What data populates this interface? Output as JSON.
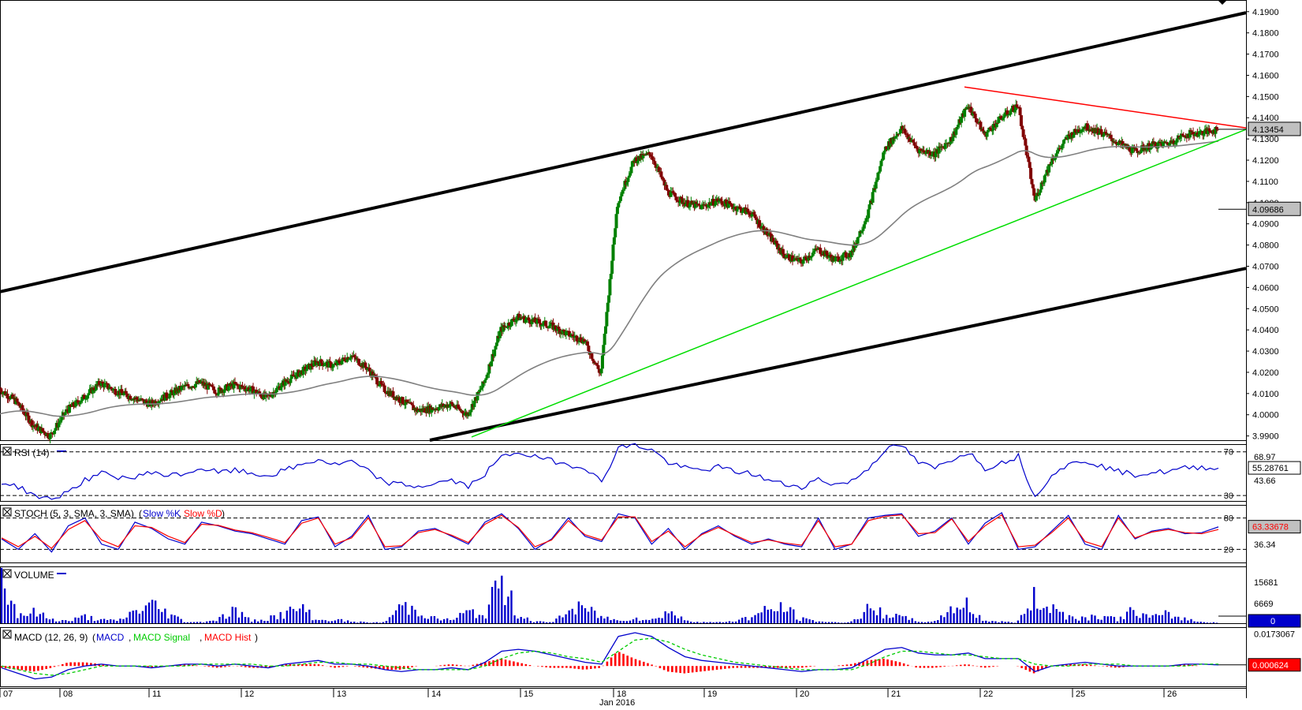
{
  "chart_data": [
    {
      "type": "candlestick",
      "panel": "price",
      "yticks": [
        "4.1900",
        "4.1800",
        "4.1700",
        "4.1600",
        "4.1500",
        "4.1400",
        "4.1300",
        "4.1200",
        "4.1100",
        "4.1000",
        "4.0900",
        "4.0800",
        "4.0700",
        "4.0600",
        "4.0500",
        "4.0400",
        "4.0300",
        "4.0200",
        "4.0100",
        "4.0000",
        "3.9900"
      ],
      "ylim": [
        3.988,
        4.1955
      ],
      "last_price": "4.13454",
      "last_price_value": 4.13454,
      "sma_label": "4.09686",
      "sma_value": 4.09686,
      "grid": false,
      "series": [
        {
          "name": "price",
          "description": "approximate close path",
          "x": [
            0,
            20,
            40,
            60,
            80,
            100,
            120,
            140,
            160,
            180,
            200,
            220,
            240,
            260,
            280,
            300,
            320,
            340,
            360,
            380,
            400,
            420,
            440,
            460,
            480,
            500,
            520,
            540,
            560,
            580,
            600,
            620,
            640,
            660,
            680,
            700,
            720,
            740,
            760,
            780,
            800,
            820,
            840,
            860,
            880,
            900,
            920,
            940,
            960,
            980,
            1000,
            1020,
            1040,
            1060,
            1080,
            1100,
            1120,
            1140,
            1160,
            1180,
            1200,
            1220,
            1240,
            1260,
            1280,
            1300,
            1320,
            1340,
            1360,
            1380,
            1400,
            1420,
            1440,
            1460
          ],
          "y": [
            4.012,
            4.006,
            3.995,
            3.99,
            4.002,
            4.008,
            4.015,
            4.011,
            4.008,
            4.005,
            4.009,
            4.013,
            4.015,
            4.011,
            4.014,
            4.012,
            4.008,
            4.015,
            4.02,
            4.025,
            4.023,
            4.028,
            4.022,
            4.012,
            4.007,
            4.002,
            4.003,
            4.005,
            4.0,
            4.015,
            4.04,
            4.046,
            4.044,
            4.042,
            4.038,
            4.035,
            4.019,
            4.1,
            4.12,
            4.123,
            4.105,
            4.1,
            4.098,
            4.101,
            4.098,
            4.095,
            4.085,
            4.075,
            4.072,
            4.078,
            4.073,
            4.076,
            4.095,
            4.125,
            4.135,
            4.125,
            4.123,
            4.13,
            4.146,
            4.132,
            4.14,
            4.146,
            4.101,
            4.12,
            4.131,
            4.136,
            4.133,
            4.128,
            4.124,
            4.127,
            4.128,
            4.132,
            4.133,
            4.1345
          ]
        }
      ],
      "trendlines": [
        {
          "name": "upper-channel",
          "color": "#000000"
        },
        {
          "name": "lower-channel",
          "color": "#000000"
        },
        {
          "name": "triangle-resistance",
          "color": "#ff0000"
        },
        {
          "name": "triangle-support",
          "color": "#00cc00"
        },
        {
          "name": "moving-average",
          "color": "#808080"
        }
      ]
    },
    {
      "type": "line",
      "panel": "rsi",
      "title": "RSI (14)",
      "levels": [
        "70",
        "30"
      ],
      "side_labels": [
        "68.97",
        "43.66"
      ],
      "value": "55.28761",
      "ylim": [
        25,
        77
      ],
      "series": [
        {
          "name": "RSI",
          "color": "#0000cc",
          "y": [
            42,
            38,
            30,
            26,
            34,
            44,
            50,
            47,
            46,
            52,
            48,
            50,
            55,
            51,
            53,
            50,
            48,
            53,
            58,
            63,
            58,
            61,
            52,
            42,
            40,
            38,
            41,
            44,
            38,
            50,
            65,
            70,
            65,
            62,
            58,
            56,
            42,
            74,
            76,
            72,
            60,
            55,
            53,
            56,
            52,
            50,
            44,
            40,
            38,
            45,
            40,
            43,
            55,
            72,
            76,
            60,
            55,
            63,
            70,
            55,
            60,
            66,
            28,
            50,
            58,
            62,
            57,
            52,
            49,
            51,
            52,
            55,
            56,
            55
          ]
        }
      ]
    },
    {
      "type": "line",
      "panel": "stoch",
      "title": "STOCH (5, 3, SMA, 3, SMA)",
      "legend": [
        "Slow %K",
        "Slow %D"
      ],
      "levels": [
        "80",
        "20"
      ],
      "side_labels": [
        "36.34"
      ],
      "value": "63.33678",
      "ylim": [
        -5,
        105
      ],
      "series": [
        {
          "name": "Slow %K",
          "color": "#0000cc",
          "y": [
            40,
            20,
            50,
            15,
            65,
            80,
            30,
            20,
            72,
            60,
            40,
            30,
            72,
            65,
            55,
            50,
            40,
            30,
            75,
            82,
            25,
            45,
            85,
            20,
            25,
            55,
            60,
            45,
            30,
            72,
            88,
            60,
            20,
            40,
            80,
            45,
            35,
            88,
            80,
            30,
            60,
            20,
            50,
            65,
            45,
            30,
            40,
            30,
            25,
            80,
            20,
            30,
            80,
            85,
            88,
            45,
            55,
            80,
            30,
            70,
            90,
            20,
            25,
            55,
            85,
            30,
            20,
            85,
            40,
            55,
            60,
            50,
            52,
            63
          ]
        },
        {
          "name": "Slow %D",
          "color": "#ff0000",
          "y": [
            42,
            25,
            45,
            22,
            58,
            75,
            38,
            25,
            65,
            62,
            45,
            33,
            68,
            66,
            57,
            52,
            43,
            33,
            70,
            80,
            30,
            42,
            80,
            25,
            27,
            52,
            58,
            47,
            33,
            68,
            85,
            62,
            25,
            38,
            75,
            48,
            38,
            82,
            82,
            35,
            55,
            25,
            48,
            62,
            47,
            33,
            38,
            32,
            28,
            75,
            25,
            30,
            75,
            83,
            86,
            50,
            52,
            78,
            35,
            65,
            86,
            25,
            28,
            52,
            80,
            35,
            25,
            80,
            42,
            53,
            58,
            52,
            50,
            58
          ]
        }
      ]
    },
    {
      "type": "bar",
      "panel": "volume",
      "title": "VOLUME",
      "side_labels": [
        "15681",
        "6669"
      ],
      "value": "0",
      "ylim": [
        0,
        17500
      ],
      "series": [
        {
          "name": "VOLUME",
          "color": "#0000cc",
          "values": [
            16500,
            3500,
            4000,
            1500,
            800,
            2500,
            1200,
            900,
            4500,
            7000,
            3800,
            600,
            400,
            1500,
            5000,
            800,
            2000,
            3500,
            6000,
            1000,
            1400,
            600,
            300,
            300,
            6500,
            5000,
            1800,
            1200,
            4200,
            2800,
            16000,
            3500,
            700,
            250,
            4500,
            5800,
            2500,
            1000,
            2200,
            900,
            4800,
            1200,
            500,
            300,
            900,
            2300,
            4800,
            6000,
            1600,
            800,
            300,
            400,
            4800,
            4000,
            2200,
            900,
            300,
            5800,
            6800,
            1000,
            600,
            250,
            9000,
            6500,
            2800,
            1900,
            3100,
            1400,
            4800,
            2000,
            3300,
            1800,
            500,
            300
          ]
        }
      ]
    },
    {
      "type": "line",
      "panel": "macd",
      "title": "MACD (12, 26, 9)",
      "legend": [
        "MACD",
        "MACD Signal",
        "MACD Hist"
      ],
      "yticks": [
        "0.0173067"
      ],
      "value": "0.000624",
      "ylim": [
        -0.011,
        0.021
      ],
      "series": [
        {
          "name": "MACD",
          "color": "#0000cc",
          "y": [
            -0.001,
            -0.004,
            -0.007,
            -0.006,
            -0.002,
            0.0,
            0.001,
            0.0,
            0.0,
            -0.001,
            0.0,
            0.001,
            0.001,
            0.0,
            0.001,
            0.0,
            -0.001,
            0.001,
            0.002,
            0.003,
            0.001,
            0.001,
            0.0,
            -0.002,
            -0.003,
            -0.002,
            -0.002,
            -0.001,
            -0.002,
            0.002,
            0.008,
            0.009,
            0.008,
            0.006,
            0.004,
            0.002,
            0.001,
            0.016,
            0.018,
            0.016,
            0.01,
            0.005,
            0.003,
            0.002,
            0.001,
            0.0,
            -0.001,
            -0.002,
            -0.003,
            -0.002,
            -0.002,
            -0.001,
            0.004,
            0.009,
            0.01,
            0.007,
            0.006,
            0.006,
            0.007,
            0.004,
            0.004,
            0.004,
            -0.003,
            0.0,
            0.001,
            0.002,
            0.001,
            0.0,
            0.0,
            0.0,
            0.0,
            0.001,
            0.001,
            0.0006
          ]
        },
        {
          "name": "MACD Signal",
          "color": "#00cc00",
          "y": [
            0.0,
            -0.002,
            -0.004,
            -0.005,
            -0.004,
            -0.002,
            0.0,
            0.0,
            0.0,
            0.0,
            0.0,
            0.0,
            0.001,
            0.001,
            0.001,
            0.001,
            0.0,
            0.0,
            0.001,
            0.002,
            0.002,
            0.001,
            0.001,
            0.0,
            -0.001,
            -0.002,
            -0.002,
            -0.002,
            -0.002,
            0.0,
            0.004,
            0.007,
            0.008,
            0.007,
            0.005,
            0.004,
            0.002,
            0.008,
            0.014,
            0.015,
            0.013,
            0.009,
            0.006,
            0.004,
            0.002,
            0.001,
            0.0,
            -0.001,
            -0.002,
            -0.002,
            -0.002,
            -0.002,
            0.001,
            0.005,
            0.008,
            0.008,
            0.007,
            0.006,
            0.006,
            0.005,
            0.004,
            0.004,
            0.001,
            0.0,
            0.0,
            0.001,
            0.001,
            0.001,
            0.0,
            0.0,
            0.0,
            0.0,
            0.001,
            0.001
          ]
        },
        {
          "name": "MACD Hist",
          "color": "#ff0000",
          "values": [
            -0.001,
            -0.002,
            -0.003,
            -0.001,
            0.002,
            0.002,
            0.001,
            0.0,
            0.0,
            -0.001,
            0.0,
            0.001,
            0.0,
            -0.001,
            0.0,
            -0.001,
            -0.001,
            0.001,
            0.001,
            0.001,
            -0.001,
            0.0,
            -0.001,
            -0.002,
            -0.002,
            0.0,
            0.0,
            0.001,
            0.0,
            0.002,
            0.004,
            0.002,
            0.0,
            -0.001,
            -0.001,
            -0.002,
            -0.001,
            0.008,
            0.004,
            0.001,
            -0.003,
            -0.004,
            -0.003,
            -0.002,
            -0.001,
            -0.001,
            -0.001,
            -0.001,
            -0.001,
            0.0,
            0.0,
            0.001,
            0.003,
            0.004,
            0.002,
            -0.001,
            -0.001,
            0.0,
            0.001,
            -0.001,
            0.0,
            0.0,
            -0.004,
            0.0,
            0.001,
            0.001,
            0.0,
            -0.001,
            0.0,
            0.0,
            0.0,
            0.001,
            0.0,
            0.0
          ]
        }
      ]
    }
  ],
  "xaxis": {
    "labels": [
      "07",
      "08",
      "11",
      "12",
      "13",
      "14",
      "15",
      "18",
      "19",
      "20",
      "21",
      "22",
      "25",
      "26"
    ],
    "month_label": "Jan 2016"
  },
  "colors": {
    "bull": "#008000",
    "bear": "#800000",
    "panel_border": "#000000",
    "level_line": "#000000"
  }
}
